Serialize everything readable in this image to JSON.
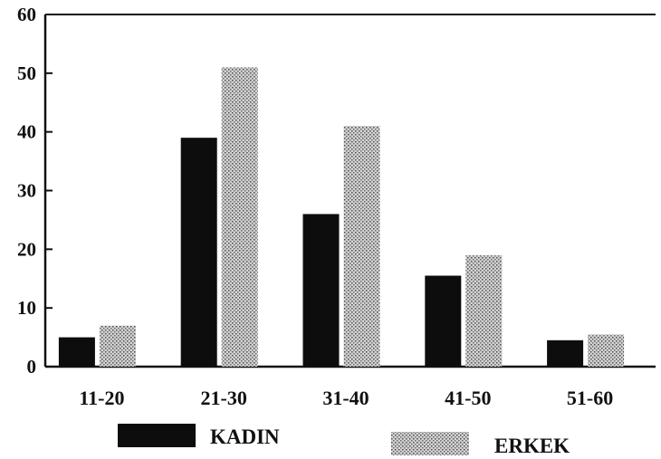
{
  "chart_data": {
    "type": "bar",
    "categories": [
      "11-20",
      "21-30",
      "31-40",
      "41-50",
      "51-60"
    ],
    "series": [
      {
        "name": "KADIN",
        "values": [
          5,
          39,
          26,
          15.5,
          4.5
        ],
        "color": "#0d0d0d",
        "pattern": "solid"
      },
      {
        "name": "ERKEK",
        "values": [
          7,
          51,
          41,
          19,
          5.5
        ],
        "color": "#bdbdbd",
        "pattern": "stipple"
      }
    ],
    "ylim": [
      0,
      60
    ],
    "yticks": [
      "0",
      "10",
      "20",
      "30",
      "40",
      "50",
      "60"
    ],
    "grid": false,
    "legend": "bottom",
    "title": "",
    "xlabel": "",
    "ylabel": ""
  }
}
